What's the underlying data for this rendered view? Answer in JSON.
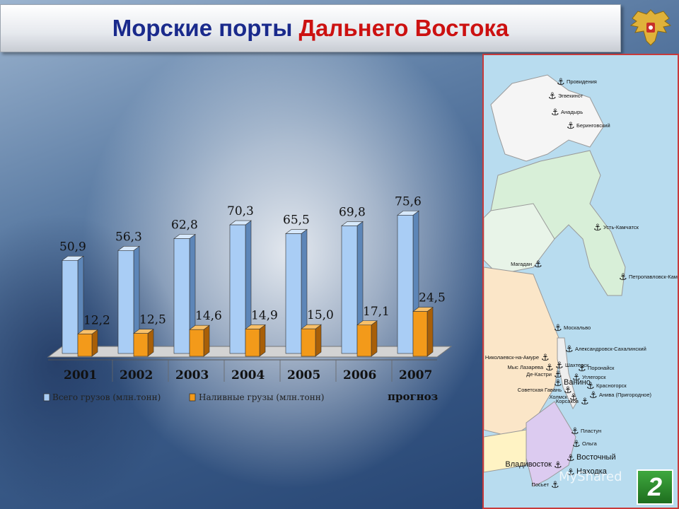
{
  "title": {
    "part1": "Морские порты",
    "part2": "Дальнего Востока"
  },
  "emblem": {
    "icon": "double-headed-eagle-emblem-icon"
  },
  "slide_number": "2",
  "watermark": "MyShared",
  "colors": {
    "series_total": "#a9cdf5",
    "series_liquid": "#f39a1a",
    "title_blue": "#1a2a8c",
    "title_red": "#cc1111"
  },
  "chart_data": {
    "type": "bar",
    "title": "",
    "xlabel": "",
    "ylabel": "",
    "categories": [
      "2001",
      "2002",
      "2003",
      "2004",
      "2005",
      "2006",
      "2007"
    ],
    "category_note": "прогноз",
    "series": [
      {
        "name": "Всего грузов (млн.тонн)",
        "values": [
          50.9,
          56.3,
          62.8,
          70.3,
          65.5,
          69.8,
          75.6
        ],
        "labels": [
          "50,9",
          "56,3",
          "62,8",
          "70,3",
          "65,5",
          "69,8",
          "75,6"
        ]
      },
      {
        "name": "Наливные грузы (млн.тонн)",
        "values": [
          12.2,
          12.5,
          14.6,
          14.9,
          15.0,
          17.1,
          24.5
        ],
        "labels": [
          "12,2",
          "12,5",
          "14,6",
          "14,9",
          "15,0",
          "17,1",
          "24,5"
        ]
      }
    ],
    "ylim": [
      0,
      80
    ],
    "grid": false,
    "legend": "bottom"
  },
  "map": {
    "ports": [
      "Провидения",
      "Эгвекинот",
      "Анадырь",
      "Беринговский",
      "Усть-Камчатск",
      "Магадан",
      "Петропавловск-Камчатский",
      "Москальво",
      "Александровск-Сахалинский",
      "Николаевск-на-Амуре",
      "Шахтерск",
      "Мыс Лазарева",
      "Поронайск",
      "Де-Кастри",
      "Ванино",
      "Углегорск",
      "Советская Гавань",
      "Красногорск",
      "Холмск",
      "Анива (Пригородное)",
      "Корсаков",
      "Пластун",
      "Ольга",
      "Восточный",
      "Владивосток",
      "Находка",
      "Посьет"
    ]
  }
}
